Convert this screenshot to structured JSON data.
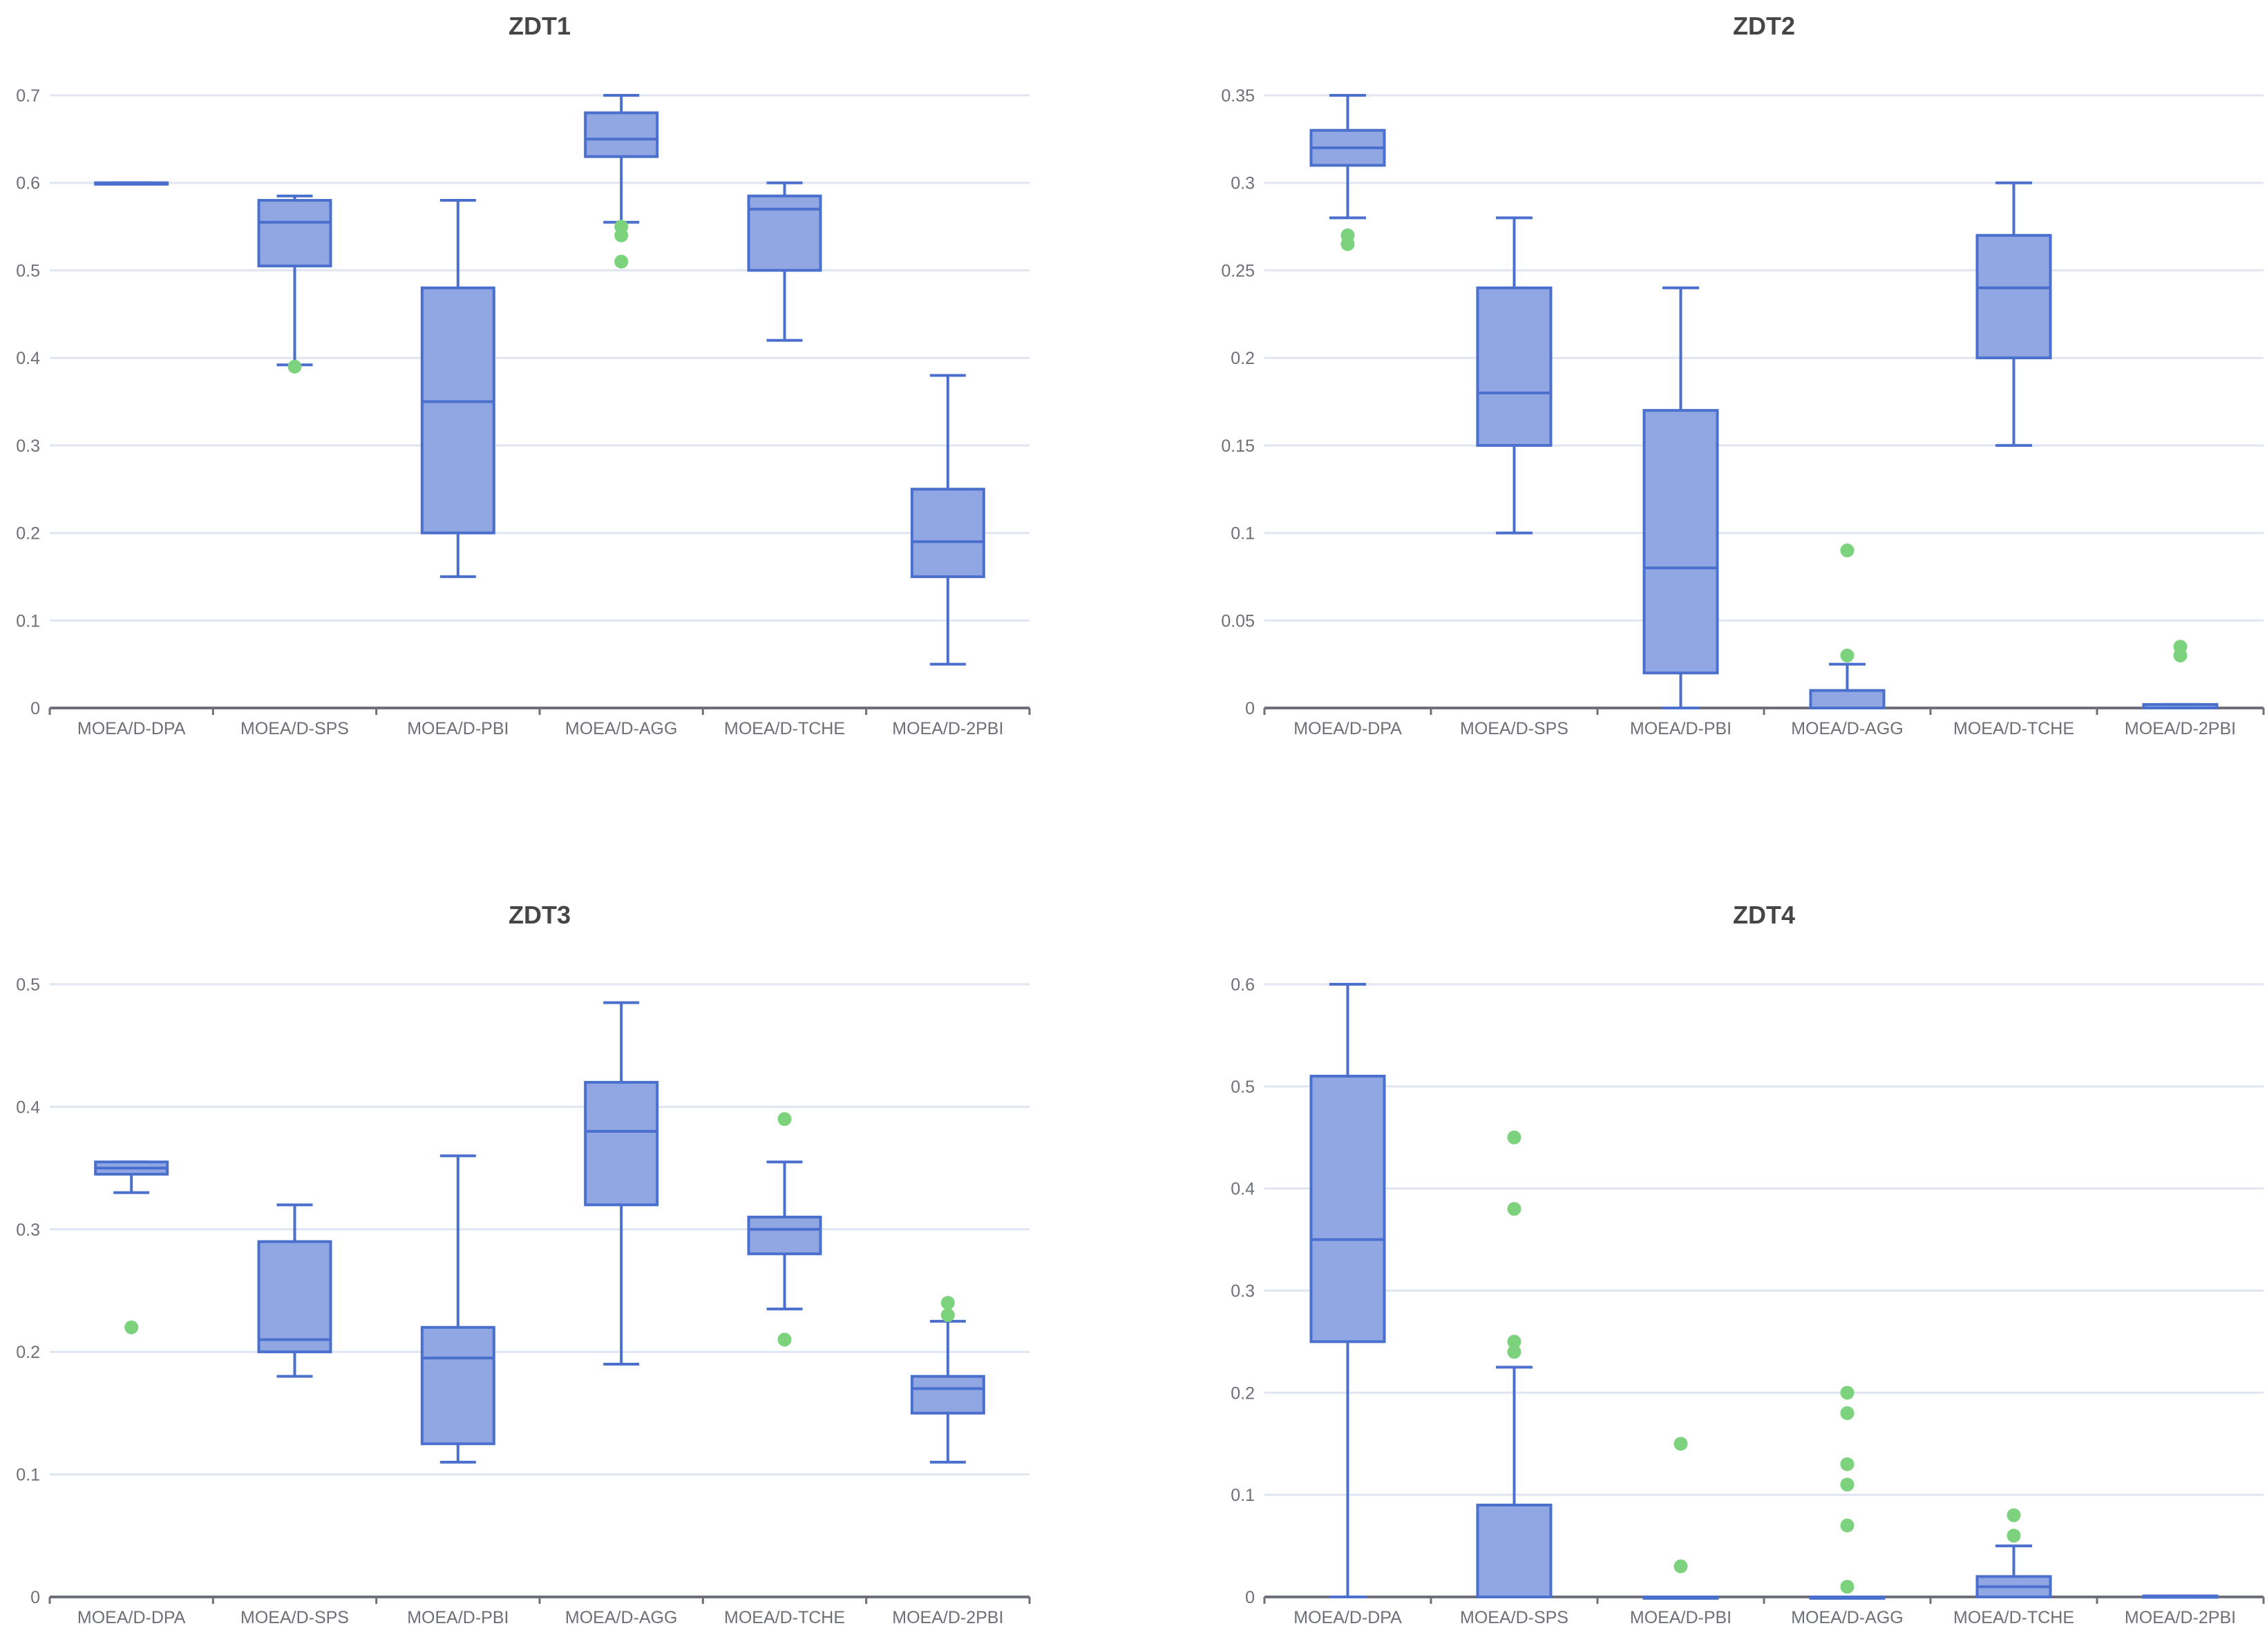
{
  "colors": {
    "box_fill": "#91a7e3",
    "box_stroke": "#4a6fcd",
    "outlier": "#7dd27d",
    "grid": "#e0e6f1",
    "axis": "#6e7079",
    "title": "#464646"
  },
  "chart_data": [
    {
      "type": "boxplot",
      "title": "ZDT1",
      "categories": [
        "MOEA/D-DPA",
        "MOEA/D-SPS",
        "MOEA/D-PBI",
        "MOEA/D-AGG",
        "MOEA/D-TCHE",
        "MOEA/D-2PBI"
      ],
      "ylim": [
        0,
        0.7
      ],
      "yticks": [
        0,
        0.1,
        0.2,
        0.3,
        0.4,
        0.5,
        0.6,
        0.7
      ],
      "ytick_labels": [
        "0",
        "0.1",
        "0.2",
        "0.3",
        "0.4",
        "0.5",
        "0.6",
        "0.7"
      ],
      "boxes": [
        {
          "min": 0.6,
          "q1": 0.6,
          "median": 0.6,
          "q3": 0.6,
          "max": 0.6
        },
        {
          "min": 0.392,
          "q1": 0.505,
          "median": 0.555,
          "q3": 0.58,
          "max": 0.585
        },
        {
          "min": 0.15,
          "q1": 0.2,
          "median": 0.35,
          "q3": 0.48,
          "max": 0.58
        },
        {
          "min": 0.555,
          "q1": 0.63,
          "median": 0.65,
          "q3": 0.68,
          "max": 0.7
        },
        {
          "min": 0.42,
          "q1": 0.5,
          "median": 0.57,
          "q3": 0.585,
          "max": 0.6
        },
        {
          "min": 0.05,
          "q1": 0.15,
          "median": 0.19,
          "q3": 0.25,
          "max": 0.38
        }
      ],
      "outliers": [
        {
          "category": 1,
          "value": 0.39
        },
        {
          "category": 3,
          "value": 0.55
        },
        {
          "category": 3,
          "value": 0.54
        },
        {
          "category": 3,
          "value": 0.51
        }
      ]
    },
    {
      "type": "boxplot",
      "title": "ZDT2",
      "categories": [
        "MOEA/D-DPA",
        "MOEA/D-SPS",
        "MOEA/D-PBI",
        "MOEA/D-AGG",
        "MOEA/D-TCHE",
        "MOEA/D-2PBI"
      ],
      "ylim": [
        0,
        0.35
      ],
      "yticks": [
        0,
        0.05,
        0.1,
        0.15,
        0.2,
        0.25,
        0.3,
        0.35
      ],
      "ytick_labels": [
        "0",
        "0.05",
        "0.1",
        "0.15",
        "0.2",
        "0.25",
        "0.3",
        "0.35"
      ],
      "boxes": [
        {
          "min": 0.28,
          "q1": 0.31,
          "median": 0.32,
          "q3": 0.33,
          "max": 0.35
        },
        {
          "min": 0.1,
          "q1": 0.15,
          "median": 0.18,
          "q3": 0.24,
          "max": 0.28
        },
        {
          "min": 0,
          "q1": 0.02,
          "median": 0.08,
          "q3": 0.17,
          "max": 0.24
        },
        {
          "min": 0,
          "q1": 0,
          "median": 0,
          "q3": 0.01,
          "max": 0.025
        },
        {
          "min": 0.15,
          "q1": 0.2,
          "median": 0.24,
          "q3": 0.27,
          "max": 0.3
        },
        {
          "min": 0,
          "q1": 0,
          "median": 0,
          "q3": 0.002,
          "max": 0.002
        }
      ],
      "outliers": [
        {
          "category": 0,
          "value": 0.27
        },
        {
          "category": 0,
          "value": 0.265
        },
        {
          "category": 3,
          "value": 0.09
        },
        {
          "category": 3,
          "value": 0.03
        },
        {
          "category": 5,
          "value": 0.035
        },
        {
          "category": 5,
          "value": 0.03
        }
      ]
    },
    {
      "type": "boxplot",
      "title": "ZDT3",
      "categories": [
        "MOEA/D-DPA",
        "MOEA/D-SPS",
        "MOEA/D-PBI",
        "MOEA/D-AGG",
        "MOEA/D-TCHE",
        "MOEA/D-2PBI"
      ],
      "ylim": [
        0,
        0.5
      ],
      "yticks": [
        0,
        0.1,
        0.2,
        0.3,
        0.4,
        0.5
      ],
      "ytick_labels": [
        "0",
        "0.1",
        "0.2",
        "0.3",
        "0.4",
        "0.5"
      ],
      "boxes": [
        {
          "min": 0.33,
          "q1": 0.345,
          "median": 0.35,
          "q3": 0.355,
          "max": 0.355
        },
        {
          "min": 0.18,
          "q1": 0.2,
          "median": 0.21,
          "q3": 0.29,
          "max": 0.32
        },
        {
          "min": 0.11,
          "q1": 0.125,
          "median": 0.195,
          "q3": 0.22,
          "max": 0.36
        },
        {
          "min": 0.19,
          "q1": 0.32,
          "median": 0.38,
          "q3": 0.42,
          "max": 0.485
        },
        {
          "min": 0.235,
          "q1": 0.28,
          "median": 0.3,
          "q3": 0.31,
          "max": 0.355
        },
        {
          "min": 0.11,
          "q1": 0.15,
          "median": 0.17,
          "q3": 0.18,
          "max": 0.225
        }
      ],
      "outliers": [
        {
          "category": 0,
          "value": 0.22
        },
        {
          "category": 4,
          "value": 0.39
        },
        {
          "category": 4,
          "value": 0.21
        },
        {
          "category": 5,
          "value": 0.24
        },
        {
          "category": 5,
          "value": 0.23
        }
      ]
    },
    {
      "type": "boxplot",
      "title": "ZDT4",
      "categories": [
        "MOEA/D-DPA",
        "MOEA/D-SPS",
        "MOEA/D-PBI",
        "MOEA/D-AGG",
        "MOEA/D-TCHE",
        "MOEA/D-2PBI"
      ],
      "ylim": [
        0,
        0.6
      ],
      "yticks": [
        0,
        0.1,
        0.2,
        0.3,
        0.4,
        0.5,
        0.6
      ],
      "ytick_labels": [
        "0",
        "0.1",
        "0.2",
        "0.3",
        "0.4",
        "0.5",
        "0.6"
      ],
      "boxes": [
        {
          "min": 0,
          "q1": 0.25,
          "median": 0.35,
          "q3": 0.51,
          "max": 0.6
        },
        {
          "min": 0,
          "q1": 0,
          "median": 0,
          "q3": 0.09,
          "max": 0.225
        },
        {
          "min": 0,
          "q1": 0,
          "median": 0,
          "q3": 0,
          "max": 0
        },
        {
          "min": 0,
          "q1": 0,
          "median": 0,
          "q3": 0,
          "max": 0
        },
        {
          "min": 0,
          "q1": 0,
          "median": 0.01,
          "q3": 0.02,
          "max": 0.05
        },
        {
          "min": 0,
          "q1": 0,
          "median": 0,
          "q3": 0.001,
          "max": 0.001
        }
      ],
      "outliers": [
        {
          "category": 1,
          "value": 0.45
        },
        {
          "category": 1,
          "value": 0.38
        },
        {
          "category": 1,
          "value": 0.25
        },
        {
          "category": 1,
          "value": 0.24
        },
        {
          "category": 2,
          "value": 0.15
        },
        {
          "category": 2,
          "value": 0.03
        },
        {
          "category": 3,
          "value": 0.2
        },
        {
          "category": 3,
          "value": 0.18
        },
        {
          "category": 3,
          "value": 0.13
        },
        {
          "category": 3,
          "value": 0.11
        },
        {
          "category": 3,
          "value": 0.07
        },
        {
          "category": 3,
          "value": 0.01
        },
        {
          "category": 4,
          "value": 0.08
        },
        {
          "category": 4,
          "value": 0.06
        }
      ]
    }
  ]
}
